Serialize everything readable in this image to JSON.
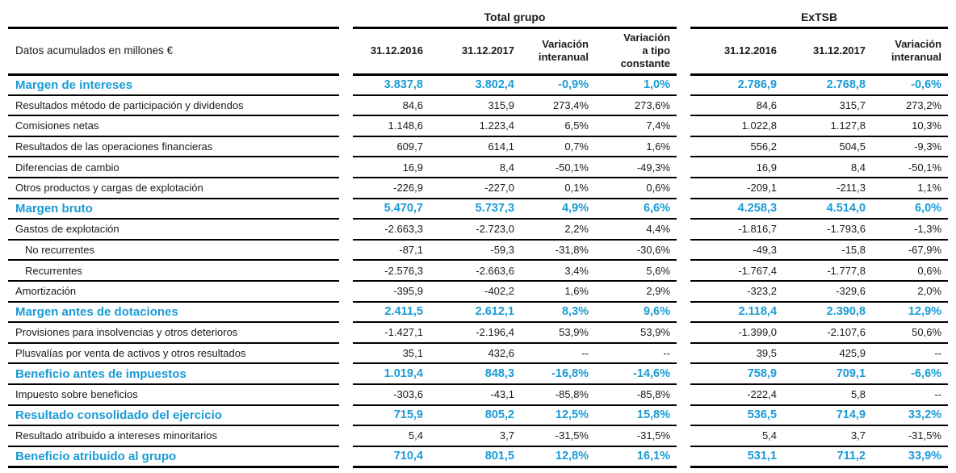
{
  "colors": {
    "accent_blue": "#1a9bd5",
    "text": "#1a1a1a",
    "rule": "#000000",
    "background": "#ffffff"
  },
  "table": {
    "unit_label": "Datos acumulados en millones €",
    "groups": [
      {
        "title": "Total grupo",
        "columns": [
          "31.12.2016",
          "31.12.2017",
          "Variación\ninteranual",
          "Variación\na tipo\nconstante"
        ]
      },
      {
        "title": "ExTSB",
        "columns": [
          "31.12.2016",
          "31.12.2017",
          "Variación\ninteranual"
        ]
      }
    ],
    "rows": [
      {
        "label": "Margen de intereses",
        "highlight": true,
        "indent": false,
        "total_grupo": [
          "3.837,8",
          "3.802,4",
          "-0,9%",
          "1,0%"
        ],
        "extsb": [
          "2.786,9",
          "2.768,8",
          "-0,6%"
        ]
      },
      {
        "label": "Resultados método de participación y dividendos",
        "highlight": false,
        "indent": false,
        "total_grupo": [
          "84,6",
          "315,9",
          "273,4%",
          "273,6%"
        ],
        "extsb": [
          "84,6",
          "315,7",
          "273,2%"
        ]
      },
      {
        "label": "Comisiones netas",
        "highlight": false,
        "indent": false,
        "total_grupo": [
          "1.148,6",
          "1.223,4",
          "6,5%",
          "7,4%"
        ],
        "extsb": [
          "1.022,8",
          "1.127,8",
          "10,3%"
        ]
      },
      {
        "label": "Resultados de las operaciones financieras",
        "highlight": false,
        "indent": false,
        "total_grupo": [
          "609,7",
          "614,1",
          "0,7%",
          "1,6%"
        ],
        "extsb": [
          "556,2",
          "504,5",
          "-9,3%"
        ]
      },
      {
        "label": "Diferencias de cambio",
        "highlight": false,
        "indent": false,
        "total_grupo": [
          "16,9",
          "8,4",
          "-50,1%",
          "-49,3%"
        ],
        "extsb": [
          "16,9",
          "8,4",
          "-50,1%"
        ]
      },
      {
        "label": "Otros productos y cargas de explotación",
        "highlight": false,
        "indent": false,
        "total_grupo": [
          "-226,9",
          "-227,0",
          "0,1%",
          "0,6%"
        ],
        "extsb": [
          "-209,1",
          "-211,3",
          "1,1%"
        ]
      },
      {
        "label": "Margen bruto",
        "highlight": true,
        "indent": false,
        "total_grupo": [
          "5.470,7",
          "5.737,3",
          "4,9%",
          "6,6%"
        ],
        "extsb": [
          "4.258,3",
          "4.514,0",
          "6,0%"
        ]
      },
      {
        "label": "Gastos de explotación",
        "highlight": false,
        "indent": false,
        "total_grupo": [
          "-2.663,3",
          "-2.723,0",
          "2,2%",
          "4,4%"
        ],
        "extsb": [
          "-1.816,7",
          "-1.793,6",
          "-1,3%"
        ]
      },
      {
        "label": "No recurrentes",
        "highlight": false,
        "indent": true,
        "total_grupo": [
          "-87,1",
          "-59,3",
          "-31,8%",
          "-30,6%"
        ],
        "extsb": [
          "-49,3",
          "-15,8",
          "-67,9%"
        ]
      },
      {
        "label": "Recurrentes",
        "highlight": false,
        "indent": true,
        "total_grupo": [
          "-2.576,3",
          "-2.663,6",
          "3,4%",
          "5,6%"
        ],
        "extsb": [
          "-1.767,4",
          "-1.777,8",
          "0,6%"
        ]
      },
      {
        "label": "Amortización",
        "highlight": false,
        "indent": false,
        "total_grupo": [
          "-395,9",
          "-402,2",
          "1,6%",
          "2,9%"
        ],
        "extsb": [
          "-323,2",
          "-329,6",
          "2,0%"
        ]
      },
      {
        "label": "Margen antes de dotaciones",
        "highlight": true,
        "indent": false,
        "total_grupo": [
          "2.411,5",
          "2.612,1",
          "8,3%",
          "9,6%"
        ],
        "extsb": [
          "2.118,4",
          "2.390,8",
          "12,9%"
        ]
      },
      {
        "label": "Provisiones para insolvencias y otros deterioros",
        "highlight": false,
        "indent": false,
        "total_grupo": [
          "-1.427,1",
          "-2.196,4",
          "53,9%",
          "53,9%"
        ],
        "extsb": [
          "-1.399,0",
          "-2.107,6",
          "50,6%"
        ]
      },
      {
        "label": "Plusvalías por venta de activos y otros resultados",
        "highlight": false,
        "indent": false,
        "total_grupo": [
          "35,1",
          "432,6",
          "--",
          "--"
        ],
        "extsb": [
          "39,5",
          "425,9",
          "--"
        ]
      },
      {
        "label": "Beneficio antes de impuestos",
        "highlight": true,
        "indent": false,
        "total_grupo": [
          "1.019,4",
          "848,3",
          "-16,8%",
          "-14,6%"
        ],
        "extsb": [
          "758,9",
          "709,1",
          "-6,6%"
        ]
      },
      {
        "label": "Impuesto sobre beneficios",
        "highlight": false,
        "indent": false,
        "total_grupo": [
          "-303,6",
          "-43,1",
          "-85,8%",
          "-85,8%"
        ],
        "extsb": [
          "-222,4",
          "5,8",
          "--"
        ]
      },
      {
        "label": "Resultado consolidado del ejercicio",
        "highlight": true,
        "indent": false,
        "total_grupo": [
          "715,9",
          "805,2",
          "12,5%",
          "15,8%"
        ],
        "extsb": [
          "536,5",
          "714,9",
          "33,2%"
        ]
      },
      {
        "label": "Resultado atribuido a intereses minoritarios",
        "highlight": false,
        "indent": false,
        "total_grupo": [
          "5,4",
          "3,7",
          "-31,5%",
          "-31,5%"
        ],
        "extsb": [
          "5,4",
          "3,7",
          "-31,5%"
        ]
      },
      {
        "label": "Beneficio atribuido al grupo",
        "highlight": true,
        "indent": false,
        "total_grupo": [
          "710,4",
          "801,5",
          "12,8%",
          "16,1%"
        ],
        "extsb": [
          "531,1",
          "711,2",
          "33,9%"
        ]
      }
    ]
  }
}
